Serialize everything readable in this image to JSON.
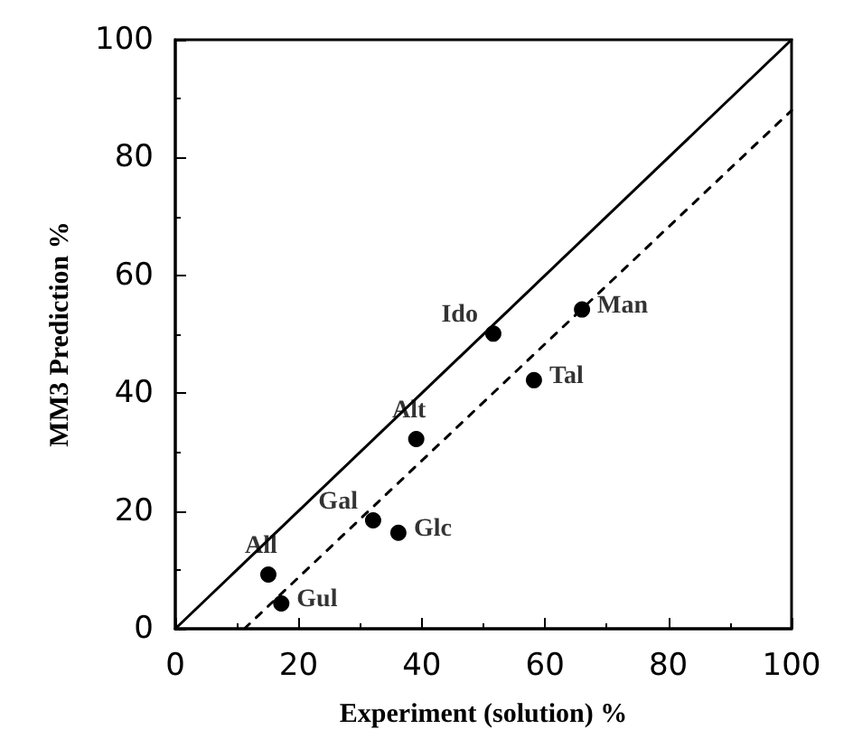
{
  "chart_data": {
    "type": "scatter",
    "xlabel": "Experiment (solution) %",
    "ylabel": "MM3 Prediction %",
    "xlim": [
      0,
      100
    ],
    "ylim": [
      0,
      100
    ],
    "xticks": [
      0,
      20,
      40,
      60,
      80,
      100
    ],
    "yticks": [
      0,
      20,
      40,
      60,
      80,
      100
    ],
    "grid": false,
    "marker": "circle",
    "series": [
      {
        "color": "#000000",
        "x": [
          51.6,
          66.0,
          58.2,
          39.1,
          32.1,
          36.2,
          15.1,
          17.2
        ],
        "values": [
          50.1,
          54.2,
          42.2,
          32.2,
          18.4,
          16.3,
          9.2,
          4.3
        ]
      },
      {
        "type": "line",
        "color": "#000000",
        "line_style": "solid",
        "marker": "none",
        "x": [
          0,
          100
        ],
        "values": [
          0,
          100
        ]
      },
      {
        "type": "line",
        "color": "#000000",
        "line_style": "dashed",
        "marker": "none",
        "x": [
          11.2,
          100
        ],
        "values": [
          0,
          88
        ]
      }
    ],
    "annotations": [
      {
        "text": "Ido",
        "x": 51.6,
        "y": 50.1
      },
      {
        "text": "Man",
        "x": 66.0,
        "y": 54.2
      },
      {
        "text": "Tal",
        "x": 58.2,
        "y": 42.2
      },
      {
        "text": "Alt",
        "x": 39.1,
        "y": 32.2
      },
      {
        "text": "Gal",
        "x": 32.1,
        "y": 18.4
      },
      {
        "text": "Glc",
        "x": 36.2,
        "y": 16.3
      },
      {
        "text": "All",
        "x": 15.1,
        "y": 9.2
      },
      {
        "text": "Gul",
        "x": 17.2,
        "y": 4.3
      }
    ]
  }
}
